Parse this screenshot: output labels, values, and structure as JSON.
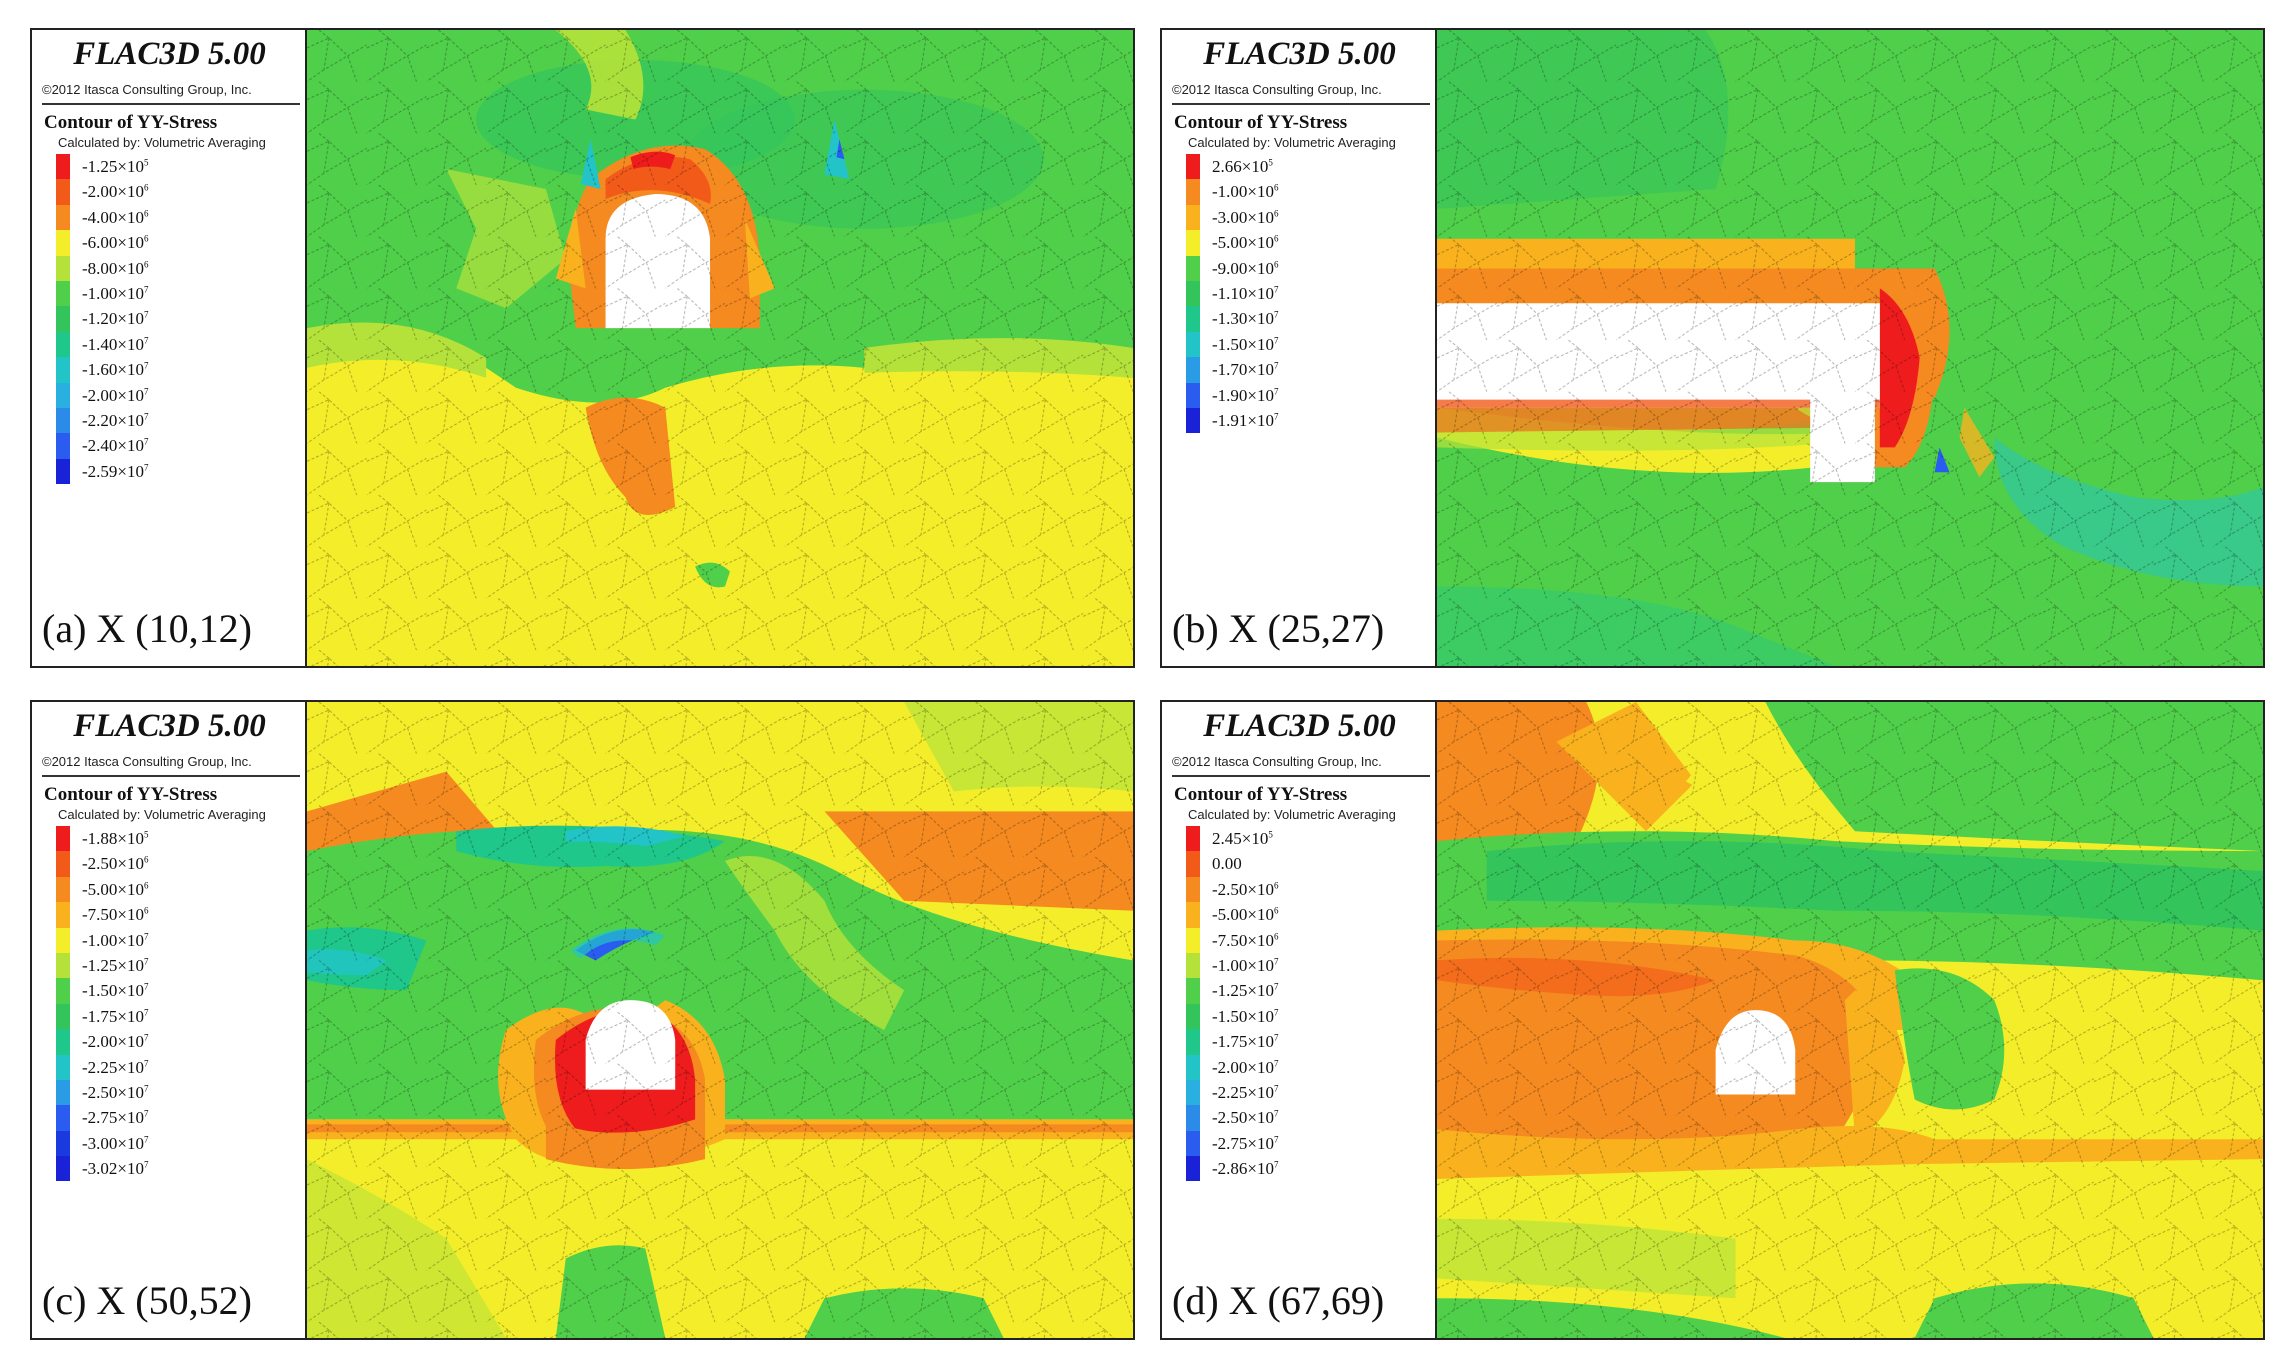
{
  "software_title": "FLAC3D 5.00",
  "copyright": "©2012 Itasca Consulting Group, Inc.",
  "contour_title": "Contour of YY-Stress",
  "calculated_by": "Calculated by: Volumetric Averaging",
  "colors": {
    "red": "#ee1c1c",
    "red_orange": "#f25a1a",
    "orange": "#f58a20",
    "light_orange": "#f9b21e",
    "yellow": "#f4ee2a",
    "yellow_green": "#b5e23a",
    "green": "#50cf4a",
    "mid_green": "#33c45c",
    "teal_green": "#1fc78a",
    "cyan": "#22c4c8",
    "light_blue": "#2a9ce6",
    "blue": "#2a5cf0",
    "deep_blue": "#1a22d8"
  },
  "panels": [
    {
      "label": "(a) X (10,12)",
      "legend": [
        {
          "m": "-1.25",
          "e": "5",
          "c": "#ee1c1c"
        },
        {
          "m": "-2.00",
          "e": "6",
          "c": "#f25a1a"
        },
        {
          "m": "-4.00",
          "e": "6",
          "c": "#f58a20"
        },
        {
          "m": "-6.00",
          "e": "6",
          "c": "#f4ee2a"
        },
        {
          "m": "-8.00",
          "e": "6",
          "c": "#b5e23a"
        },
        {
          "m": "-1.00",
          "e": "7",
          "c": "#50cf4a"
        },
        {
          "m": "-1.20",
          "e": "7",
          "c": "#33c45c"
        },
        {
          "m": "-1.40",
          "e": "7",
          "c": "#1fc78a"
        },
        {
          "m": "-1.60",
          "e": "7",
          "c": "#22c4c8"
        },
        {
          "m": "-2.00",
          "e": "7",
          "c": "#2ab0e0"
        },
        {
          "m": "-2.20",
          "e": "7",
          "c": "#2a8ce8"
        },
        {
          "m": "-2.40",
          "e": "7",
          "c": "#2a5cf0"
        },
        {
          "m": "-2.59",
          "e": "7",
          "c": "#1a22d8"
        }
      ]
    },
    {
      "label": "(b) X (25,27)",
      "legend": [
        {
          "m": "2.66",
          "e": "5",
          "c": "#ee1c1c"
        },
        {
          "m": "-1.00",
          "e": "6",
          "c": "#f58a20"
        },
        {
          "m": "-3.00",
          "e": "6",
          "c": "#f9b21e"
        },
        {
          "m": "-5.00",
          "e": "6",
          "c": "#f4ee2a"
        },
        {
          "m": "-9.00",
          "e": "6",
          "c": "#50cf4a"
        },
        {
          "m": "-1.10",
          "e": "7",
          "c": "#33c45c"
        },
        {
          "m": "-1.30",
          "e": "7",
          "c": "#1fc78a"
        },
        {
          "m": "-1.50",
          "e": "7",
          "c": "#22c4c8"
        },
        {
          "m": "-1.70",
          "e": "7",
          "c": "#2a9ce6"
        },
        {
          "m": "-1.90",
          "e": "7",
          "c": "#2a5cf0"
        },
        {
          "m": "-1.91",
          "e": "7",
          "c": "#1a22d8"
        }
      ]
    },
    {
      "label": "(c) X (50,52)",
      "legend": [
        {
          "m": "-1.88",
          "e": "5",
          "c": "#ee1c1c"
        },
        {
          "m": "-2.50",
          "e": "6",
          "c": "#f25a1a"
        },
        {
          "m": "-5.00",
          "e": "6",
          "c": "#f58a20"
        },
        {
          "m": "-7.50",
          "e": "6",
          "c": "#f9b21e"
        },
        {
          "m": "-1.00",
          "e": "7",
          "c": "#f4ee2a"
        },
        {
          "m": "-1.25",
          "e": "7",
          "c": "#b5e23a"
        },
        {
          "m": "-1.50",
          "e": "7",
          "c": "#50cf4a"
        },
        {
          "m": "-1.75",
          "e": "7",
          "c": "#33c45c"
        },
        {
          "m": "-2.00",
          "e": "7",
          "c": "#1fc78a"
        },
        {
          "m": "-2.25",
          "e": "7",
          "c": "#22c4c8"
        },
        {
          "m": "-2.50",
          "e": "7",
          "c": "#2a9ce6"
        },
        {
          "m": "-2.75",
          "e": "7",
          "c": "#2a5cf0"
        },
        {
          "m": "-3.00",
          "e": "7",
          "c": "#1a3ae0"
        },
        {
          "m": "-3.02",
          "e": "7",
          "c": "#1a22d8"
        }
      ]
    },
    {
      "label": "(d) X (67,69)",
      "legend": [
        {
          "m": "2.45",
          "e": "5",
          "c": "#ee1c1c"
        },
        {
          "m": "0.00",
          "e": "",
          "c": "#f25a1a"
        },
        {
          "m": "-2.50",
          "e": "6",
          "c": "#f58a20"
        },
        {
          "m": "-5.00",
          "e": "6",
          "c": "#f9b21e"
        },
        {
          "m": "-7.50",
          "e": "6",
          "c": "#f4ee2a"
        },
        {
          "m": "-1.00",
          "e": "7",
          "c": "#b5e23a"
        },
        {
          "m": "-1.25",
          "e": "7",
          "c": "#50cf4a"
        },
        {
          "m": "-1.50",
          "e": "7",
          "c": "#33c45c"
        },
        {
          "m": "-1.75",
          "e": "7",
          "c": "#1fc78a"
        },
        {
          "m": "-2.00",
          "e": "7",
          "c": "#22c4c8"
        },
        {
          "m": "-2.25",
          "e": "7",
          "c": "#2ab0e0"
        },
        {
          "m": "-2.50",
          "e": "7",
          "c": "#2a8ce8"
        },
        {
          "m": "-2.75",
          "e": "7",
          "c": "#2a5cf0"
        },
        {
          "m": "-2.86",
          "e": "7",
          "c": "#1a22d8"
        }
      ]
    }
  ]
}
